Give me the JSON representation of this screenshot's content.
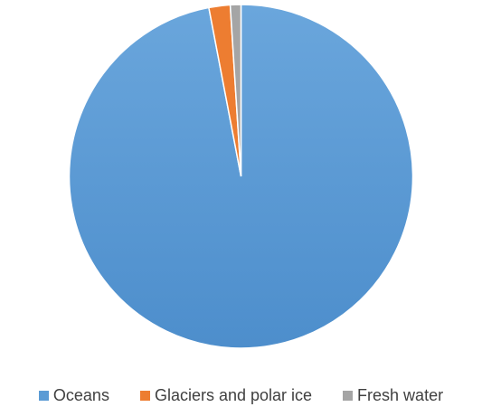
{
  "chart_data": {
    "type": "pie",
    "title": "",
    "categories": [
      "Oceans",
      "Glaciers and polar ice",
      "Fresh water"
    ],
    "values": [
      97,
      2,
      1
    ],
    "colors": [
      "#5b9bd5",
      "#ed7d31",
      "#a5a5a5"
    ],
    "start_angle": "12 o'clock, clockwise",
    "legend_position": "bottom",
    "data_labels": false
  }
}
